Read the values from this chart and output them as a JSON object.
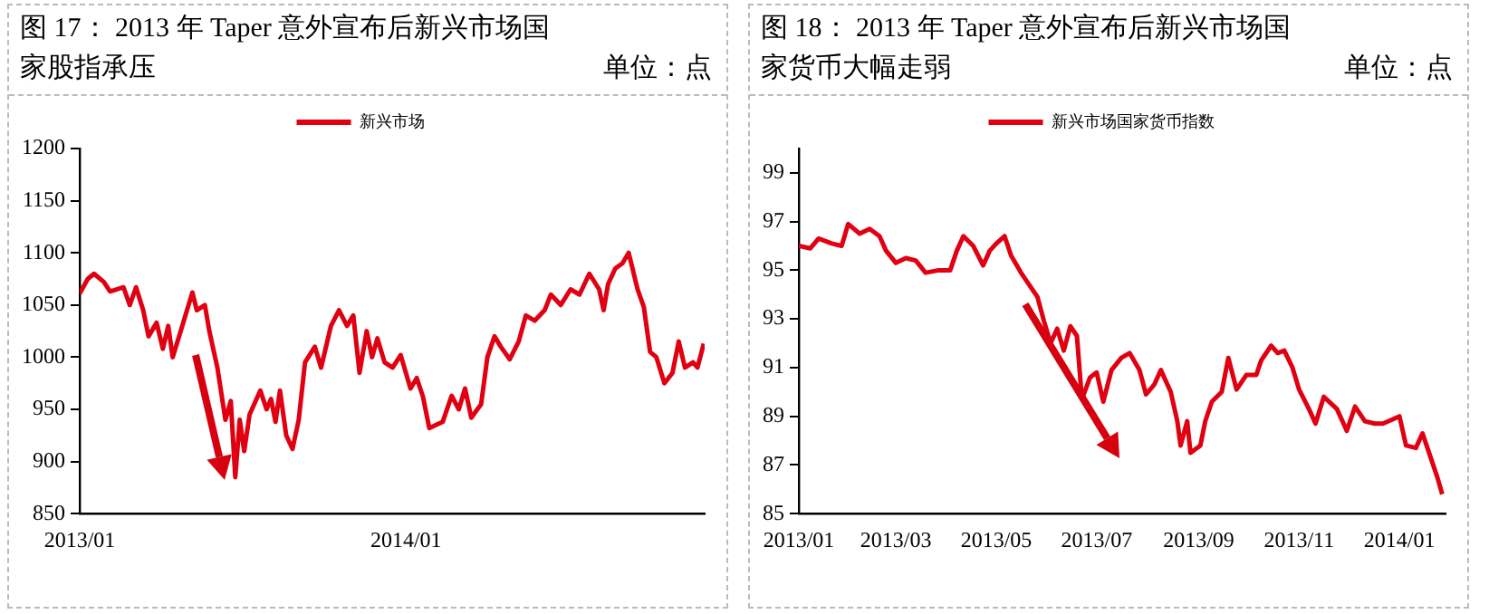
{
  "chart_data": [
    {
      "type": "line",
      "title": "图 17： 2013 年 Taper 意外宣布后新兴市场国家股指承压",
      "ylabel": "单位：点",
      "legend": "top",
      "grid": false,
      "marker": "none",
      "line_style": "solid",
      "xlim": [
        "2013-01-01",
        "2014-12-01"
      ],
      "xticks": [
        {
          "value": "2013-01-01",
          "label": "2013/01"
        },
        {
          "value": "2014-01-01",
          "label": "2014/01"
        }
      ],
      "ylim": [
        850,
        1200
      ],
      "yticks": [
        850,
        900,
        950,
        1000,
        1050,
        1100,
        1150,
        1200
      ],
      "series": [
        {
          "name": "新兴市场",
          "color": "#e00012",
          "x": [
            "2013-01-01",
            "2013-01-10",
            "2013-01-17",
            "2013-01-28",
            "2013-02-04",
            "2013-02-19",
            "2013-02-26",
            "2013-03-05",
            "2013-03-13",
            "2013-03-19",
            "2013-03-28",
            "2013-04-04",
            "2013-04-10",
            "2013-04-15",
            "2013-04-24",
            "2013-05-07",
            "2013-05-12",
            "2013-05-21",
            "2013-05-26",
            "2013-06-04",
            "2013-06-13",
            "2013-06-19",
            "2013-06-24",
            "2013-06-29",
            "2013-07-04",
            "2013-07-10",
            "2013-07-22",
            "2013-07-29",
            "2013-08-03",
            "2013-08-08",
            "2013-08-13",
            "2013-08-20",
            "2013-08-27",
            "2013-09-03",
            "2013-09-10",
            "2013-09-21",
            "2013-09-28",
            "2013-10-09",
            "2013-10-18",
            "2013-10-27",
            "2013-11-03",
            "2013-11-10",
            "2013-11-18",
            "2013-11-24",
            "2013-11-30",
            "2013-12-08",
            "2013-12-17",
            "2013-12-26",
            "2014-01-06",
            "2014-01-13",
            "2014-01-20",
            "2014-01-27",
            "2014-02-11",
            "2014-02-21",
            "2014-03-01",
            "2014-03-08",
            "2014-03-15",
            "2014-03-26",
            "2014-04-02",
            "2014-04-10",
            "2014-04-17",
            "2014-04-27",
            "2014-05-07",
            "2014-05-15",
            "2014-05-25",
            "2014-06-05",
            "2014-06-12",
            "2014-06-23",
            "2014-07-04",
            "2014-07-14",
            "2014-07-25",
            "2014-08-05",
            "2014-08-10",
            "2014-08-15",
            "2014-08-23",
            "2014-08-31",
            "2014-09-07",
            "2014-09-17",
            "2014-09-24",
            "2014-10-01",
            "2014-10-08",
            "2014-10-17",
            "2014-10-26",
            "2014-11-02",
            "2014-11-09",
            "2014-11-18",
            "2014-11-23",
            "2014-11-30"
          ],
          "values": [
            1061,
            1075,
            1080,
            1072,
            1063,
            1067,
            1050,
            1067,
            1045,
            1020,
            1033,
            1008,
            1030,
            1000,
            1025,
            1062,
            1045,
            1050,
            1025,
            990,
            940,
            958,
            885,
            940,
            910,
            945,
            968,
            950,
            960,
            938,
            968,
            925,
            912,
            940,
            995,
            1010,
            990,
            1030,
            1045,
            1030,
            1040,
            985,
            1025,
            1000,
            1018,
            995,
            990,
            1002,
            970,
            980,
            962,
            932,
            938,
            963,
            950,
            970,
            942,
            955,
            1000,
            1020,
            1010,
            998,
            1015,
            1040,
            1035,
            1045,
            1060,
            1050,
            1065,
            1060,
            1080,
            1065,
            1045,
            1070,
            1085,
            1090,
            1100,
            1065,
            1048,
            1005,
            1000,
            975,
            985,
            1015,
            990,
            995,
            990,
            1013
          ]
        }
      ]
    },
    {
      "type": "line",
      "title": "图 18： 2013 年 Taper 意外宣布后新兴市场国家货币大幅走弱",
      "ylabel": "单位：点",
      "legend": "top",
      "grid": false,
      "marker": "none",
      "line_style": "solid",
      "xlim": [
        "2013-01-01",
        "2014-01-29"
      ],
      "xticks": [
        {
          "value": "2013-01-01",
          "label": "2013/01"
        },
        {
          "value": "2013-03-01",
          "label": "2013/03"
        },
        {
          "value": "2013-05-01",
          "label": "2013/05"
        },
        {
          "value": "2013-07-01",
          "label": "2013/07"
        },
        {
          "value": "2013-09-01",
          "label": "2013/09"
        },
        {
          "value": "2013-11-01",
          "label": "2013/11"
        },
        {
          "value": "2014-01-01",
          "label": "2014/01"
        }
      ],
      "ylim": [
        85,
        100
      ],
      "yticks": [
        85,
        87,
        89,
        91,
        93,
        95,
        97,
        99
      ],
      "series": [
        {
          "name": "新兴市场国家货币指数",
          "color": "#e00012",
          "x": [
            "2013-01-01",
            "2013-01-08",
            "2013-01-13",
            "2013-01-21",
            "2013-01-27",
            "2013-01-31",
            "2013-02-07",
            "2013-02-13",
            "2013-02-19",
            "2013-02-23",
            "2013-03-01",
            "2013-03-07",
            "2013-03-13",
            "2013-03-19",
            "2013-03-27",
            "2013-04-03",
            "2013-04-07",
            "2013-04-11",
            "2013-04-17",
            "2013-04-23",
            "2013-04-27",
            "2013-05-01",
            "2013-05-06",
            "2013-05-10",
            "2013-05-16",
            "2013-05-20",
            "2013-05-26",
            "2013-05-30",
            "2013-06-03",
            "2013-06-07",
            "2013-06-11",
            "2013-06-15",
            "2013-06-19",
            "2013-06-22",
            "2013-06-27",
            "2013-07-01",
            "2013-07-05",
            "2013-07-10",
            "2013-07-16",
            "2013-07-21",
            "2013-07-27",
            "2013-07-31",
            "2013-08-05",
            "2013-08-09",
            "2013-08-15",
            "2013-08-19",
            "2013-08-21",
            "2013-08-25",
            "2013-08-27",
            "2013-09-02",
            "2013-09-05",
            "2013-09-09",
            "2013-09-15",
            "2013-09-19",
            "2013-09-24",
            "2013-09-30",
            "2013-10-06",
            "2013-10-09",
            "2013-10-15",
            "2013-10-19",
            "2013-10-23",
            "2013-10-28",
            "2013-11-01",
            "2013-11-07",
            "2013-11-11",
            "2013-11-16",
            "2013-11-24",
            "2013-11-30",
            "2013-12-05",
            "2013-12-11",
            "2013-12-17",
            "2013-12-22",
            "2014-01-01",
            "2014-01-05",
            "2014-01-11",
            "2014-01-15",
            "2014-01-20",
            "2014-01-24",
            "2014-01-27"
          ],
          "values": [
            96.0,
            95.9,
            96.3,
            96.1,
            96.0,
            96.9,
            96.5,
            96.7,
            96.4,
            95.8,
            95.3,
            95.5,
            95.4,
            94.9,
            95.0,
            95.0,
            95.8,
            96.4,
            96.0,
            95.2,
            95.8,
            96.1,
            96.4,
            95.6,
            94.9,
            94.5,
            93.9,
            92.9,
            92.0,
            92.6,
            91.7,
            92.7,
            92.3,
            89.7,
            90.6,
            90.8,
            89.6,
            90.9,
            91.4,
            91.6,
            90.9,
            89.9,
            90.3,
            90.9,
            90.0,
            88.8,
            87.8,
            88.8,
            87.5,
            87.8,
            88.8,
            89.6,
            90.0,
            91.4,
            90.1,
            90.7,
            90.7,
            91.3,
            91.9,
            91.6,
            91.7,
            91.0,
            90.1,
            89.3,
            88.7,
            89.8,
            89.3,
            88.4,
            89.4,
            88.8,
            88.7,
            88.7,
            89.0,
            87.8,
            87.7,
            88.3,
            87.3,
            86.5,
            85.8
          ]
        }
      ]
    }
  ]
}
